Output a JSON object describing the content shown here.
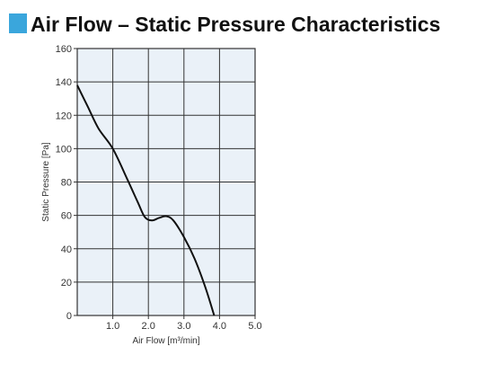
{
  "header": {
    "title": "Air Flow – Static Pressure Characteristics",
    "marker_color": "#3aa6dc"
  },
  "chart_data": {
    "type": "line",
    "title": "Air Flow – Static Pressure Characteristics",
    "xlabel": "Air Flow [m³/min]",
    "ylabel": "Static Pressure [Pa]",
    "xlim": [
      0,
      5
    ],
    "ylim": [
      0,
      160
    ],
    "xticks": [
      "1.0",
      "2.0",
      "3.0",
      "4.0",
      "5.0"
    ],
    "yticks": [
      "0",
      "20",
      "40",
      "60",
      "80",
      "100",
      "120",
      "140",
      "160"
    ],
    "grid": true,
    "series": [
      {
        "color": "#111111",
        "points": [
          [
            0.0,
            138
          ],
          [
            0.3,
            125
          ],
          [
            0.6,
            112
          ],
          [
            1.0,
            100
          ],
          [
            1.4,
            82
          ],
          [
            1.7,
            68
          ],
          [
            1.9,
            59
          ],
          [
            2.1,
            57
          ],
          [
            2.3,
            58.5
          ],
          [
            2.5,
            59.5
          ],
          [
            2.7,
            57
          ],
          [
            3.0,
            47
          ],
          [
            3.3,
            34
          ],
          [
            3.6,
            17
          ],
          [
            3.85,
            0
          ]
        ]
      }
    ]
  }
}
